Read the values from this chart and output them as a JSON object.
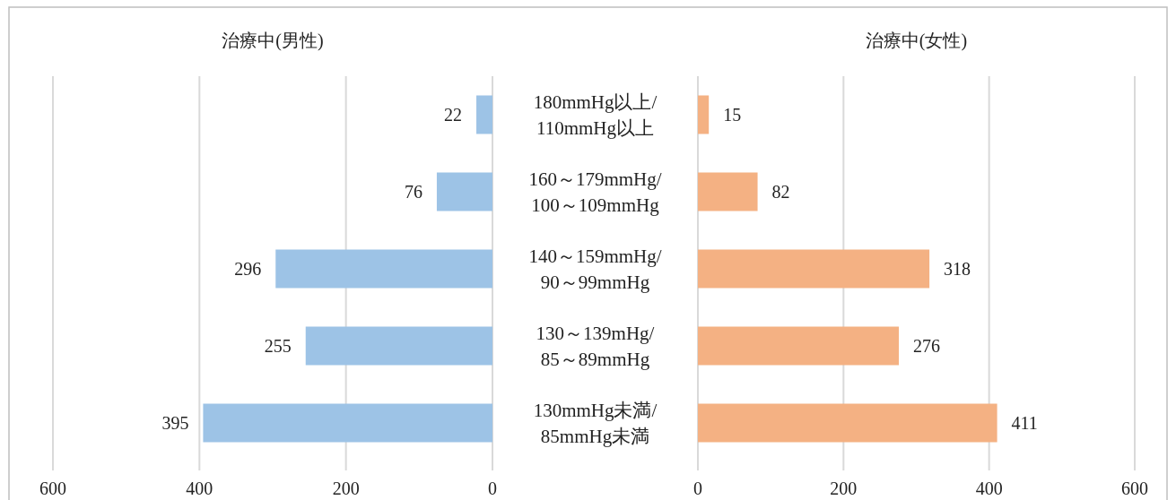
{
  "chart_data": [
    {
      "type": "bar",
      "orientation": "horizontal",
      "title": "治療中(男性)",
      "categories": [
        "180mmHg以上/110mmHg以上",
        "160～179mmHg/100～109mmHg",
        "140～159mmHg/90～99mmHg",
        "130～139mHg/85～89mmHg",
        "130mmHg未満/85mmHg未満"
      ],
      "values": [
        22,
        76,
        296,
        255,
        395
      ],
      "color": "#9dc3e6",
      "xlim": [
        600,
        0
      ],
      "xticks": [
        600,
        400,
        200,
        0
      ],
      "grid": "x",
      "data_labels": true
    },
    {
      "type": "bar",
      "orientation": "horizontal",
      "title": "治療中(女性)",
      "categories": [
        null,
        null,
        null,
        null,
        null
      ],
      "values": [
        15,
        82,
        318,
        276,
        411
      ],
      "color": "#f4b183",
      "xlim": [
        0,
        600
      ],
      "xticks": [
        0,
        200,
        400,
        600
      ],
      "grid": "x",
      "data_labels": true,
      "tick_labels": "x"
    }
  ]
}
